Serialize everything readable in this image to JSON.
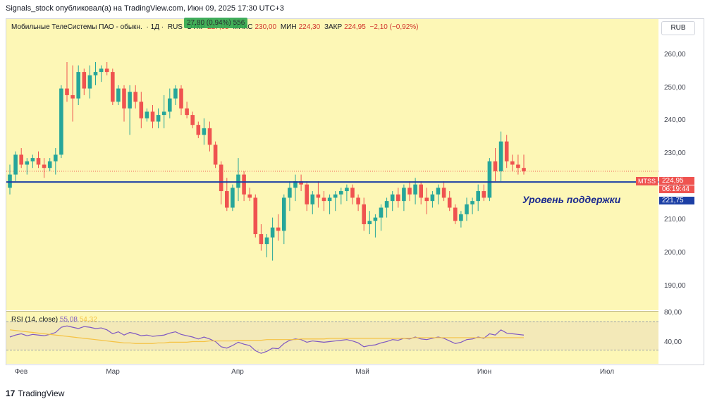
{
  "header": {
    "publisher_line": "Signals_stock опубликовал(а) на TradingView.com, Июн 09, 2025 17:30 UTC+3"
  },
  "legend": {
    "instrument": "Мобильные ТелеСистемы ПАО - обыкн.",
    "interval": "· 1Д ·",
    "exchange": "RUS",
    "open_label": "ОТКР",
    "open_value": "227,05",
    "high_label": "МАКС",
    "high_value": "230,00",
    "low_label": "МИН",
    "low_value": "224,30",
    "close_label": "ЗАКР",
    "close_value": "224,95",
    "change": "−2,10 (−0,92%)",
    "overlay_badge": "27,80 (0,94%) 556"
  },
  "currency_button": "RUB",
  "price_tags": {
    "ticker": "MTSS",
    "last_price": "224,95",
    "countdown": "06:19:44",
    "support_price": "221,75"
  },
  "annotation": "Уровень поддержки",
  "rsi": {
    "label": "RSI (14, close)",
    "value1": "55,08",
    "value2": "54,32",
    "ticks": [
      "80,00",
      "40,00"
    ]
  },
  "footer": {
    "logo_text": "17",
    "brand": "TradingView"
  },
  "colors": {
    "up": "#26a69a",
    "down": "#ef5350",
    "support_line": "#1c3fa5",
    "background": "#fdf7b6",
    "rsi_line": "#7e57c2",
    "rsi_ma": "#f5c243"
  },
  "chart_data": {
    "type": "candlestick",
    "y_ticks": [
      "260,00",
      "250,00",
      "240,00",
      "230,00",
      "220,00",
      "210,00",
      "200,00",
      "190,00"
    ],
    "y_tick_values": [
      260,
      250,
      240,
      230,
      220,
      210,
      200,
      190
    ],
    "x_ticks": [
      "Фев",
      "Мар",
      "Апр",
      "Май",
      "Июн",
      "Июл"
    ],
    "ylim": [
      183,
      271
    ],
    "support_level": 221.75,
    "candles": [
      [
        220,
        227,
        218,
        224
      ],
      [
        224,
        231,
        222,
        230
      ],
      [
        230,
        232,
        226,
        227
      ],
      [
        227,
        229,
        224,
        228
      ],
      [
        228,
        230,
        226,
        229
      ],
      [
        229,
        231,
        226,
        227
      ],
      [
        227,
        229,
        223,
        226
      ],
      [
        226,
        229,
        225,
        228
      ],
      [
        228,
        232,
        224,
        230
      ],
      [
        230,
        251,
        229,
        250
      ],
      [
        250,
        258,
        246,
        248
      ],
      [
        248,
        257,
        240,
        247
      ],
      [
        247,
        257,
        245,
        255
      ],
      [
        255,
        256,
        248,
        250
      ],
      [
        250,
        257,
        247,
        254
      ],
      [
        254,
        258,
        251,
        255
      ],
      [
        255,
        257,
        252,
        256
      ],
      [
        256,
        258,
        254,
        255
      ],
      [
        255,
        256,
        245,
        246
      ],
      [
        246,
        251,
        245,
        250
      ],
      [
        250,
        251,
        240,
        244
      ],
      [
        244,
        251,
        236,
        249
      ],
      [
        249,
        251,
        244,
        246
      ],
      [
        246,
        249,
        238,
        241
      ],
      [
        241,
        244,
        240,
        243
      ],
      [
        243,
        245,
        238,
        240
      ],
      [
        240,
        244,
        238,
        242
      ],
      [
        242,
        248,
        238,
        243
      ],
      [
        243,
        250,
        241,
        247
      ],
      [
        247,
        251,
        245,
        250
      ],
      [
        250,
        251,
        242,
        244
      ],
      [
        244,
        246,
        241,
        242
      ],
      [
        242,
        243,
        238,
        239
      ],
      [
        239,
        240,
        235,
        236
      ],
      [
        236,
        241,
        233,
        238
      ],
      [
        238,
        240,
        231,
        233
      ],
      [
        233,
        234,
        226,
        227
      ],
      [
        227,
        228,
        215,
        219
      ],
      [
        219,
        223,
        213,
        214
      ],
      [
        214,
        221,
        213,
        220
      ],
      [
        220,
        229,
        216,
        224
      ],
      [
        224,
        225,
        216,
        218
      ],
      [
        218,
        220,
        216,
        217
      ],
      [
        217,
        218,
        205,
        206
      ],
      [
        206,
        209,
        201,
        203
      ],
      [
        203,
        206,
        199,
        205
      ],
      [
        205,
        211,
        198,
        208
      ],
      [
        208,
        212,
        204,
        207
      ],
      [
        207,
        218,
        203,
        217
      ],
      [
        217,
        222,
        213,
        220
      ],
      [
        220,
        224,
        216,
        222
      ],
      [
        222,
        224,
        219,
        221
      ],
      [
        221,
        222,
        213,
        215
      ],
      [
        215,
        219,
        212,
        218
      ],
      [
        218,
        222,
        214,
        217
      ],
      [
        217,
        219,
        213,
        216
      ],
      [
        216,
        218,
        212,
        217
      ],
      [
        217,
        219,
        213,
        218
      ],
      [
        218,
        220,
        215,
        219
      ],
      [
        219,
        221,
        216,
        220
      ],
      [
        220,
        221,
        215,
        217
      ],
      [
        217,
        218,
        213,
        215
      ],
      [
        215,
        217,
        207,
        209
      ],
      [
        209,
        213,
        206,
        210
      ],
      [
        210,
        212,
        205,
        211
      ],
      [
        211,
        215,
        207,
        214
      ],
      [
        214,
        217,
        211,
        216
      ],
      [
        216,
        219,
        213,
        218
      ],
      [
        218,
        220,
        214,
        216
      ],
      [
        216,
        221,
        213,
        220
      ],
      [
        220,
        222,
        216,
        218
      ],
      [
        218,
        223,
        215,
        221
      ],
      [
        221,
        222,
        215,
        217
      ],
      [
        217,
        220,
        212,
        216
      ],
      [
        216,
        219,
        214,
        218
      ],
      [
        218,
        221,
        215,
        220
      ],
      [
        220,
        222,
        216,
        217
      ],
      [
        217,
        219,
        213,
        214
      ],
      [
        214,
        215,
        209,
        210
      ],
      [
        210,
        213,
        208,
        212
      ],
      [
        212,
        217,
        210,
        215
      ],
      [
        215,
        217,
        212,
        216
      ],
      [
        216,
        221,
        213,
        219
      ],
      [
        219,
        221,
        216,
        217
      ],
      [
        217,
        229,
        216,
        228
      ],
      [
        228,
        232,
        222,
        225
      ],
      [
        225,
        237,
        222,
        234
      ],
      [
        234,
        236,
        226,
        228
      ],
      [
        228,
        230,
        225,
        227
      ],
      [
        227,
        230,
        224,
        226
      ],
      [
        226,
        230,
        224,
        225
      ]
    ],
    "rsi_values": [
      55,
      58,
      60,
      57,
      59,
      58,
      57,
      59,
      62,
      70,
      72,
      70,
      68,
      71,
      70,
      68,
      69,
      66,
      60,
      63,
      58,
      62,
      60,
      57,
      58,
      56,
      57,
      58,
      61,
      63,
      59,
      57,
      55,
      52,
      55,
      52,
      48,
      40,
      38,
      42,
      47,
      44,
      42,
      34,
      30,
      33,
      38,
      37,
      45,
      50,
      52,
      51,
      47,
      49,
      48,
      47,
      48,
      49,
      50,
      51,
      49,
      46,
      40,
      42,
      43,
      46,
      48,
      51,
      50,
      53,
      52,
      55,
      52,
      51,
      53,
      55,
      53,
      49,
      45,
      47,
      51,
      52,
      55,
      53,
      60,
      58,
      66,
      61,
      60,
      59,
      58
    ],
    "rsi_ma_values": [
      66,
      65,
      64,
      63,
      62,
      61,
      60,
      59,
      58,
      57,
      56,
      55,
      54,
      53,
      52,
      51,
      50,
      49,
      48,
      47,
      46,
      46,
      45,
      45,
      45,
      45,
      46,
      46,
      47,
      47,
      47,
      47,
      48,
      48,
      48,
      49,
      49,
      49,
      49,
      49,
      50,
      50,
      50,
      50,
      50,
      51,
      51,
      51,
      51,
      51,
      51,
      52,
      52,
      52,
      52,
      52,
      53,
      53,
      53,
      53,
      53,
      53,
      53,
      53,
      53,
      53,
      53,
      53,
      53,
      53,
      53,
      54,
      54,
      54,
      54,
      54,
      54,
      54,
      54,
      54,
      54,
      54,
      54,
      54,
      54,
      54,
      54,
      54,
      54,
      54,
      54
    ],
    "rsi_ylim": [
      15,
      95
    ]
  }
}
